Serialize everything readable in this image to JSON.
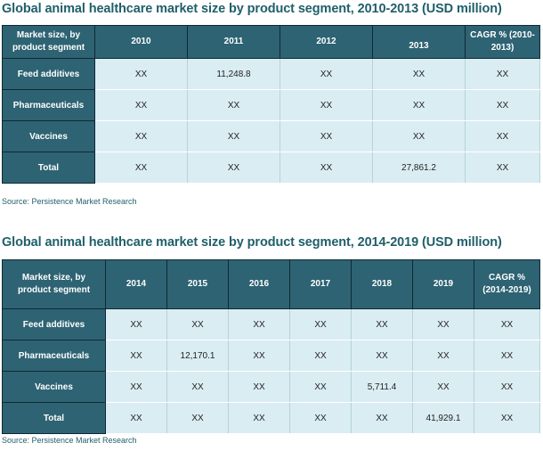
{
  "table1": {
    "title": "Global animal healthcare market size by product segment, 2010-2013 (USD million)",
    "header_label": "Market size, by product segment",
    "columns": [
      "2010",
      "2011",
      "2012",
      "2013",
      "CAGR % (2010-2013)"
    ],
    "rows": [
      {
        "label": "Feed additives",
        "cells": [
          "XX",
          "11,248.8",
          "XX",
          "XX",
          "XX"
        ]
      },
      {
        "label": "Pharmaceuticals",
        "cells": [
          "XX",
          "XX",
          "XX",
          "XX",
          "XX"
        ]
      },
      {
        "label": "Vaccines",
        "cells": [
          "XX",
          "XX",
          "XX",
          "XX",
          "XX"
        ]
      },
      {
        "label": "Total",
        "cells": [
          "XX",
          "XX",
          "XX",
          "27,861.2",
          "XX"
        ]
      }
    ],
    "source": "Source: Persistence Market Research"
  },
  "table2": {
    "title": "Global animal healthcare market size by product segment, 2014-2019 (USD million)",
    "header_label": "Market size, by product segment",
    "columns": [
      "2014",
      "2015",
      "2016",
      "2017",
      "2018",
      "2019",
      "CAGR % (2014-2019)"
    ],
    "rows": [
      {
        "label": "Feed additives",
        "cells": [
          "XX",
          "XX",
          "XX",
          "XX",
          "XX",
          "XX",
          "XX"
        ]
      },
      {
        "label": "Pharmaceuticals",
        "cells": [
          "XX",
          "12,170.1",
          "XX",
          "XX",
          "XX",
          "XX",
          "XX"
        ]
      },
      {
        "label": "Vaccines",
        "cells": [
          "XX",
          "XX",
          "XX",
          "XX",
          "5,711.4",
          "XX",
          "XX"
        ]
      },
      {
        "label": "Total",
        "cells": [
          "XX",
          "XX",
          "XX",
          "XX",
          "XX",
          "41,929.1",
          "XX"
        ]
      }
    ],
    "source": "Source: Persistence Market Research"
  }
}
